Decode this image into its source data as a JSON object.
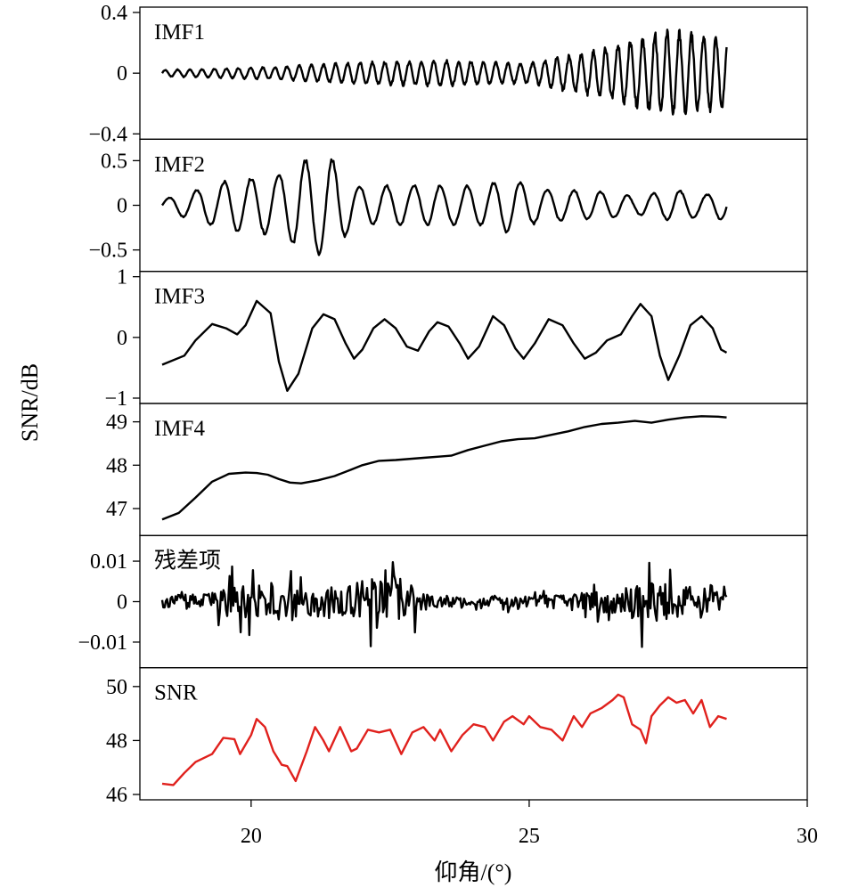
{
  "figure": {
    "ylabel": "SNR/dB",
    "xlabel": "仰角/(°)",
    "xlim": [
      18,
      30
    ],
    "xticks": [
      20,
      25,
      30
    ],
    "xtick_labels": [
      "20",
      "25",
      "30"
    ],
    "grid": false
  },
  "chart_data": [
    {
      "type": "line",
      "label": "IMF1",
      "color": "#000000",
      "ylim": [
        -0.4,
        0.4
      ],
      "yticks": [
        0.4,
        0,
        -0.4
      ],
      "ytick_labels": [
        "0.4",
        "0",
        "−0.4"
      ],
      "signal": {
        "model": "oscillation",
        "x_start": 18.4,
        "x_end": 28.55,
        "cycles": 46,
        "noise": 0.3,
        "seed": 11,
        "envelope": [
          [
            18.4,
            0.02
          ],
          [
            19.5,
            0.03
          ],
          [
            20.5,
            0.04
          ],
          [
            22.0,
            0.07
          ],
          [
            23.5,
            0.08
          ],
          [
            25.0,
            0.06
          ],
          [
            25.5,
            0.1
          ],
          [
            26.3,
            0.15
          ],
          [
            27.0,
            0.22
          ],
          [
            27.5,
            0.26
          ],
          [
            28.2,
            0.24
          ],
          [
            28.55,
            0.2
          ]
        ]
      }
    },
    {
      "type": "line",
      "label": "IMF2",
      "color": "#000000",
      "ylim": [
        -0.68,
        0.68
      ],
      "yticks": [
        0.5,
        0,
        -0.5
      ],
      "ytick_labels": [
        "0.5",
        "0",
        "−0.5"
      ],
      "signal": {
        "model": "oscillation",
        "x_start": 18.4,
        "x_end": 28.55,
        "cycles": 21,
        "noise": 0.12,
        "seed": 23,
        "envelope": [
          [
            18.4,
            0.06
          ],
          [
            18.9,
            0.15
          ],
          [
            19.6,
            0.28
          ],
          [
            20.4,
            0.32
          ],
          [
            21.0,
            0.52
          ],
          [
            21.4,
            0.55
          ],
          [
            21.9,
            0.2
          ],
          [
            22.5,
            0.22
          ],
          [
            23.5,
            0.22
          ],
          [
            24.2,
            0.22
          ],
          [
            24.6,
            0.3
          ],
          [
            25.2,
            0.18
          ],
          [
            26.3,
            0.15
          ],
          [
            26.9,
            0.1
          ],
          [
            27.6,
            0.17
          ],
          [
            28.2,
            0.12
          ],
          [
            28.55,
            0.18
          ]
        ]
      }
    },
    {
      "type": "line",
      "label": "IMF3",
      "color": "#000000",
      "ylim": [
        -1,
        1
      ],
      "yticks": [
        1,
        0,
        -1
      ],
      "ytick_labels": [
        "1",
        "0",
        "−1"
      ],
      "points": [
        [
          18.4,
          -0.45
        ],
        [
          18.8,
          -0.3
        ],
        [
          19.0,
          -0.05
        ],
        [
          19.3,
          0.22
        ],
        [
          19.55,
          0.15
        ],
        [
          19.75,
          0.05
        ],
        [
          19.9,
          0.2
        ],
        [
          20.1,
          0.6
        ],
        [
          20.35,
          0.4
        ],
        [
          20.5,
          -0.4
        ],
        [
          20.65,
          -0.88
        ],
        [
          20.85,
          -0.6
        ],
        [
          21.1,
          0.15
        ],
        [
          21.3,
          0.38
        ],
        [
          21.5,
          0.3
        ],
        [
          21.7,
          -0.1
        ],
        [
          21.85,
          -0.35
        ],
        [
          22.0,
          -0.2
        ],
        [
          22.2,
          0.15
        ],
        [
          22.4,
          0.3
        ],
        [
          22.6,
          0.15
        ],
        [
          22.8,
          -0.15
        ],
        [
          23.0,
          -0.22
        ],
        [
          23.2,
          0.1
        ],
        [
          23.35,
          0.25
        ],
        [
          23.55,
          0.18
        ],
        [
          23.75,
          -0.1
        ],
        [
          23.9,
          -0.35
        ],
        [
          24.1,
          -0.15
        ],
        [
          24.35,
          0.35
        ],
        [
          24.55,
          0.2
        ],
        [
          24.75,
          -0.18
        ],
        [
          24.9,
          -0.35
        ],
        [
          25.1,
          -0.1
        ],
        [
          25.35,
          0.3
        ],
        [
          25.6,
          0.2
        ],
        [
          25.8,
          -0.1
        ],
        [
          26.0,
          -0.35
        ],
        [
          26.2,
          -0.25
        ],
        [
          26.4,
          -0.05
        ],
        [
          26.65,
          0.05
        ],
        [
          26.85,
          0.35
        ],
        [
          27.0,
          0.55
        ],
        [
          27.2,
          0.35
        ],
        [
          27.35,
          -0.3
        ],
        [
          27.5,
          -0.7
        ],
        [
          27.7,
          -0.3
        ],
        [
          27.9,
          0.2
        ],
        [
          28.1,
          0.35
        ],
        [
          28.3,
          0.15
        ],
        [
          28.45,
          -0.2
        ],
        [
          28.55,
          -0.25
        ]
      ]
    },
    {
      "type": "line",
      "label": "IMF4",
      "color": "#000000",
      "ylim": [
        46.5,
        49.3
      ],
      "yticks": [
        49,
        48,
        47
      ],
      "ytick_labels": [
        "49",
        "48",
        "47"
      ],
      "points": [
        [
          18.4,
          46.75
        ],
        [
          18.7,
          46.9
        ],
        [
          19.0,
          47.25
        ],
        [
          19.3,
          47.62
        ],
        [
          19.6,
          47.8
        ],
        [
          19.9,
          47.83
        ],
        [
          20.1,
          47.82
        ],
        [
          20.3,
          47.78
        ],
        [
          20.5,
          47.68
        ],
        [
          20.7,
          47.6
        ],
        [
          20.9,
          47.58
        ],
        [
          21.2,
          47.65
        ],
        [
          21.5,
          47.75
        ],
        [
          21.8,
          47.9
        ],
        [
          22.0,
          48.0
        ],
        [
          22.3,
          48.1
        ],
        [
          22.6,
          48.12
        ],
        [
          22.9,
          48.15
        ],
        [
          23.1,
          48.17
        ],
        [
          23.4,
          48.2
        ],
        [
          23.6,
          48.22
        ],
        [
          23.9,
          48.35
        ],
        [
          24.2,
          48.45
        ],
        [
          24.5,
          48.55
        ],
        [
          24.8,
          48.6
        ],
        [
          25.1,
          48.62
        ],
        [
          25.4,
          48.7
        ],
        [
          25.7,
          48.78
        ],
        [
          26.0,
          48.88
        ],
        [
          26.3,
          48.95
        ],
        [
          26.6,
          48.98
        ],
        [
          26.9,
          49.02
        ],
        [
          27.2,
          48.98
        ],
        [
          27.5,
          49.05
        ],
        [
          27.8,
          49.1
        ],
        [
          28.1,
          49.13
        ],
        [
          28.4,
          49.12
        ],
        [
          28.55,
          49.1
        ]
      ]
    },
    {
      "type": "line",
      "label": "残差项",
      "color": "#000000",
      "ylim": [
        -0.015,
        0.015
      ],
      "yticks": [
        0.01,
        0,
        -0.01
      ],
      "ytick_labels": [
        "0.01",
        "0",
        "−0.01"
      ],
      "signal": {
        "model": "noise",
        "x_start": 18.4,
        "x_end": 28.55,
        "samples": 460,
        "seed": 37,
        "envelope": [
          [
            18.4,
            0.0015
          ],
          [
            19.2,
            0.002
          ],
          [
            19.6,
            0.004
          ],
          [
            20.3,
            0.004
          ],
          [
            21.0,
            0.004
          ],
          [
            21.6,
            0.0035
          ],
          [
            22.2,
            0.006
          ],
          [
            22.5,
            0.009
          ],
          [
            22.8,
            0.005
          ],
          [
            23.2,
            0.0015
          ],
          [
            24.2,
            0.001
          ],
          [
            25.2,
            0.0015
          ],
          [
            26.0,
            0.0025
          ],
          [
            26.8,
            0.004
          ],
          [
            27.2,
            0.006
          ],
          [
            27.6,
            0.004
          ],
          [
            28.1,
            0.0035
          ],
          [
            28.55,
            0.002
          ]
        ]
      }
    },
    {
      "type": "line",
      "label": "SNR",
      "color": "#e0211d",
      "ylim": [
        46,
        50.5
      ],
      "yticks": [
        50,
        48,
        46
      ],
      "ytick_labels": [
        "50",
        "48",
        "46"
      ],
      "points": [
        [
          18.4,
          46.4
        ],
        [
          18.6,
          46.35
        ],
        [
          18.8,
          46.8
        ],
        [
          19.0,
          47.2
        ],
        [
          19.3,
          47.5
        ],
        [
          19.5,
          48.1
        ],
        [
          19.7,
          48.05
        ],
        [
          19.8,
          47.5
        ],
        [
          20.0,
          48.2
        ],
        [
          20.1,
          48.8
        ],
        [
          20.25,
          48.5
        ],
        [
          20.4,
          47.6
        ],
        [
          20.55,
          47.1
        ],
        [
          20.65,
          47.05
        ],
        [
          20.8,
          46.5
        ],
        [
          21.0,
          47.6
        ],
        [
          21.15,
          48.5
        ],
        [
          21.3,
          48.0
        ],
        [
          21.4,
          47.6
        ],
        [
          21.6,
          48.5
        ],
        [
          21.8,
          47.6
        ],
        [
          21.9,
          47.7
        ],
        [
          22.1,
          48.4
        ],
        [
          22.3,
          48.3
        ],
        [
          22.5,
          48.4
        ],
        [
          22.7,
          47.5
        ],
        [
          22.9,
          48.3
        ],
        [
          23.1,
          48.5
        ],
        [
          23.3,
          48.0
        ],
        [
          23.4,
          48.4
        ],
        [
          23.6,
          47.6
        ],
        [
          23.8,
          48.2
        ],
        [
          24.0,
          48.6
        ],
        [
          24.2,
          48.5
        ],
        [
          24.35,
          48.0
        ],
        [
          24.55,
          48.7
        ],
        [
          24.7,
          48.9
        ],
        [
          24.9,
          48.6
        ],
        [
          25.0,
          48.9
        ],
        [
          25.2,
          48.5
        ],
        [
          25.4,
          48.4
        ],
        [
          25.6,
          48.0
        ],
        [
          25.8,
          48.9
        ],
        [
          25.95,
          48.5
        ],
        [
          26.1,
          49.0
        ],
        [
          26.3,
          49.2
        ],
        [
          26.5,
          49.5
        ],
        [
          26.6,
          49.7
        ],
        [
          26.7,
          49.6
        ],
        [
          26.85,
          48.6
        ],
        [
          27.0,
          48.4
        ],
        [
          27.1,
          47.9
        ],
        [
          27.2,
          48.9
        ],
        [
          27.35,
          49.3
        ],
        [
          27.5,
          49.6
        ],
        [
          27.65,
          49.4
        ],
        [
          27.8,
          49.5
        ],
        [
          27.95,
          49.0
        ],
        [
          28.1,
          49.5
        ],
        [
          28.25,
          48.5
        ],
        [
          28.4,
          48.9
        ],
        [
          28.55,
          48.8
        ]
      ]
    }
  ]
}
